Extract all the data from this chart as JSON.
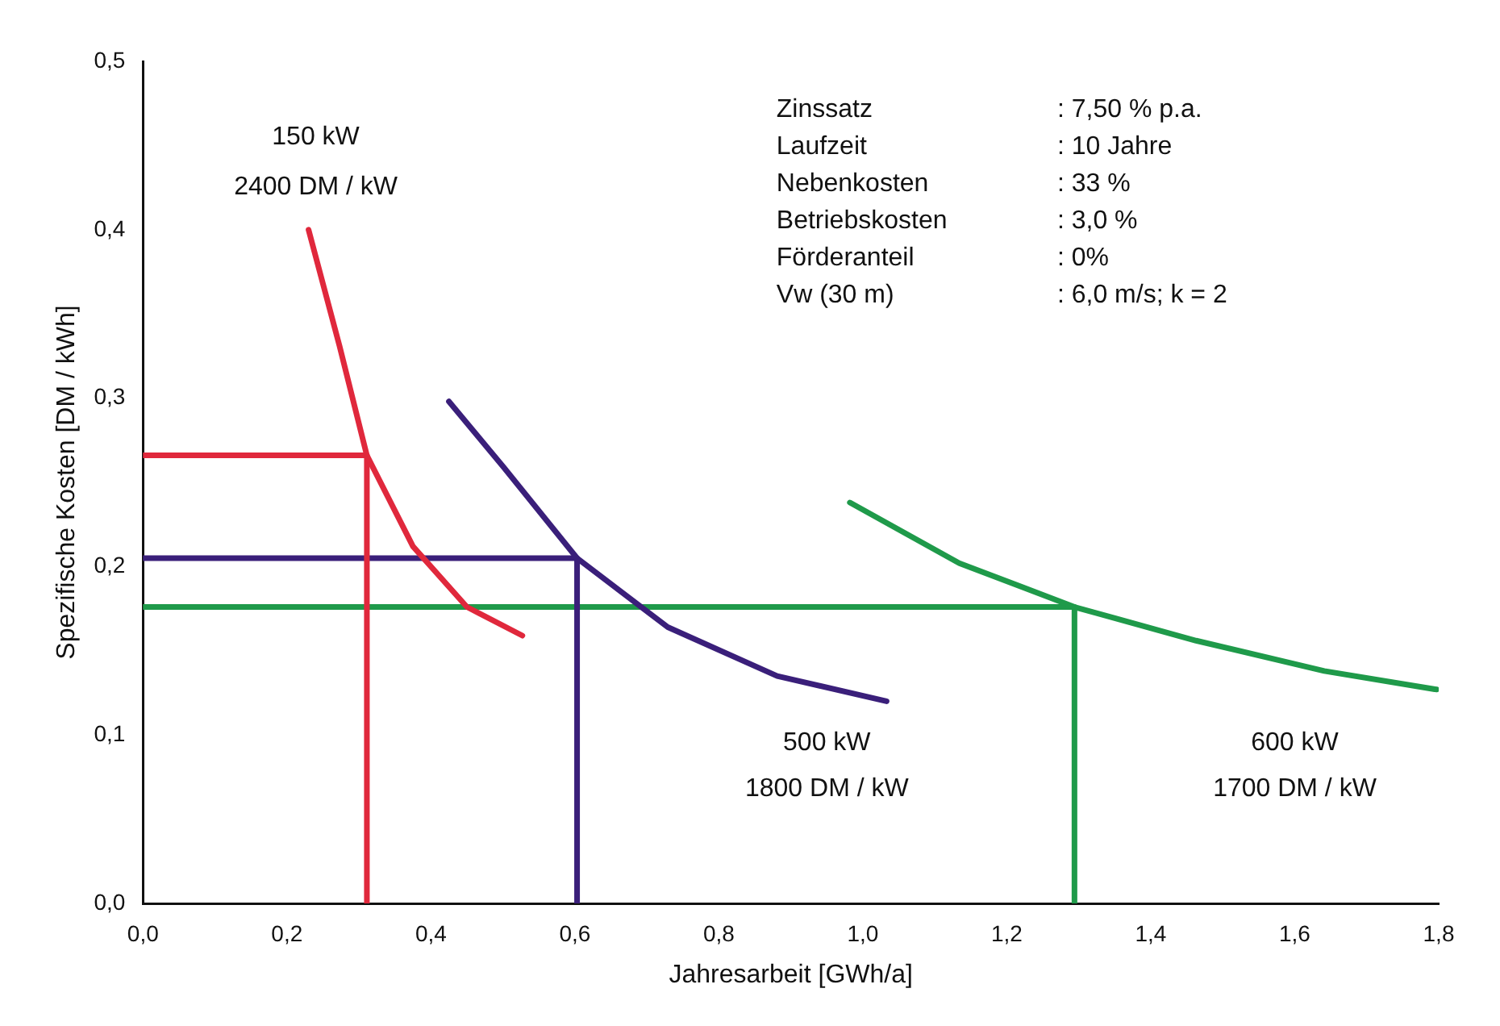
{
  "chart_data": {
    "type": "line",
    "xlabel": "Jahresarbeit [GWh/a]",
    "ylabel": "Spezifische Kosten [DM / kWh]",
    "xlim": [
      0,
      1.8
    ],
    "ylim": [
      0,
      0.5
    ],
    "xticks": [
      {
        "value": 0,
        "label": "0,0"
      },
      {
        "value": 0.2,
        "label": "0,2"
      },
      {
        "value": 0.4,
        "label": "0,4"
      },
      {
        "value": 0.6,
        "label": "0,6"
      },
      {
        "value": 0.8,
        "label": "0,8"
      },
      {
        "value": 1.0,
        "label": "1,0"
      },
      {
        "value": 1.2,
        "label": "1,2"
      },
      {
        "value": 1.4,
        "label": "1,4"
      },
      {
        "value": 1.6,
        "label": "1,6"
      },
      {
        "value": 1.8,
        "label": "1,8"
      }
    ],
    "yticks": [
      {
        "value": 0,
        "label": "0,0"
      },
      {
        "value": 0.1,
        "label": "0,1"
      },
      {
        "value": 0.2,
        "label": "0,2"
      },
      {
        "value": 0.3,
        "label": "0,3"
      },
      {
        "value": 0.4,
        "label": "0,4"
      },
      {
        "value": 0.5,
        "label": "0,5"
      }
    ],
    "grid": false,
    "legend": false,
    "marker": "none",
    "line_style": "solid",
    "series": [
      {
        "color": "#e0283c",
        "x": [
          0.23,
          0.273,
          0.311,
          0.375,
          0.45,
          0.527
        ],
        "values": [
          0.4,
          0.331,
          0.266,
          0.212,
          0.176,
          0.159
        ]
      },
      {
        "color": "#3a1f7a",
        "x": [
          0.425,
          0.501,
          0.603,
          0.729,
          0.881,
          1.033
        ],
        "values": [
          0.298,
          0.259,
          0.205,
          0.164,
          0.135,
          0.12
        ]
      },
      {
        "color": "#1f9a4a",
        "x": [
          0.982,
          1.134,
          1.294,
          1.463,
          1.641,
          1.797
        ],
        "values": [
          0.238,
          0.202,
          0.176,
          0.156,
          0.138,
          0.127
        ]
      },
      {
        "color": "#e0283c",
        "x": [
          0,
          0.311,
          0.311
        ],
        "values": [
          0.266,
          0.266,
          0
        ]
      },
      {
        "color": "#3a1f7a",
        "x": [
          0,
          0.603,
          0.603
        ],
        "values": [
          0.205,
          0.205,
          0
        ]
      },
      {
        "color": "#1f9a4a",
        "x": [
          0,
          1.294,
          1.294
        ],
        "values": [
          0.176,
          0.176,
          0
        ]
      }
    ],
    "annotations": [
      "150 kW",
      "2400 DM / kW",
      "500 kW",
      "1800 DM / kW",
      "600 kW",
      "1700 DM / kW",
      "Zinssatz : 7,50 % p.a.",
      "Laufzeit : 10 Jahre",
      "Nebenkosten : 33 %",
      "Betriebskosten : 3,0 %",
      "Förderanteil : 0%",
      "Vw (30 m) : 6,0 m/s; k = 2"
    ]
  }
}
